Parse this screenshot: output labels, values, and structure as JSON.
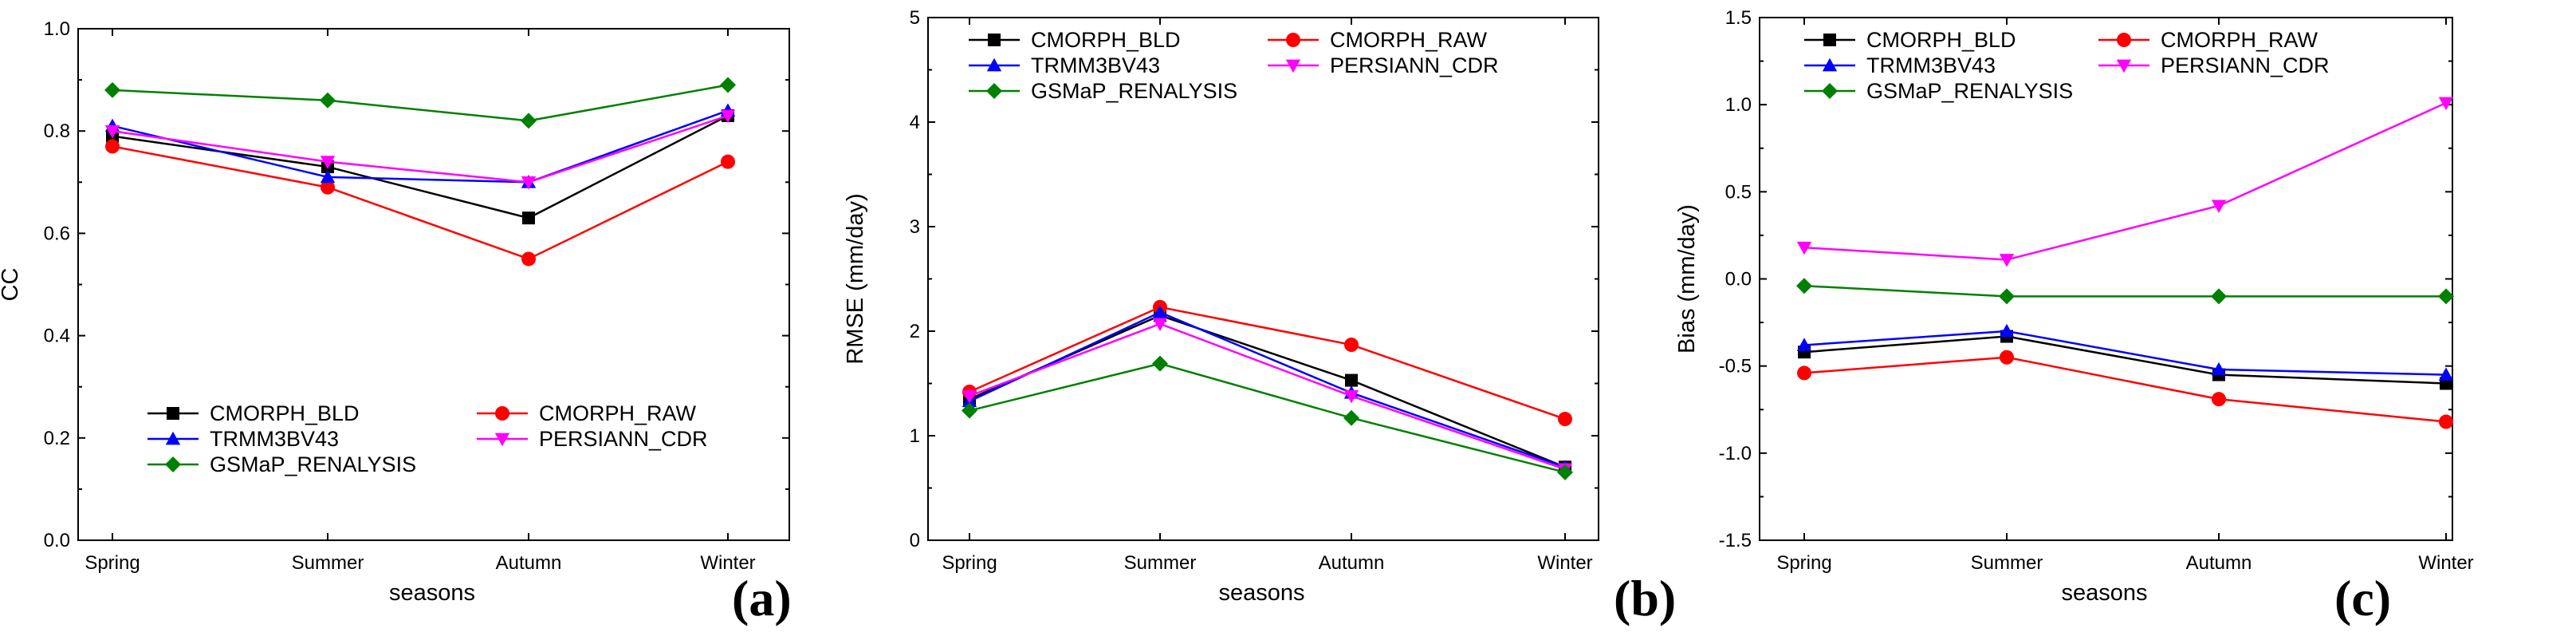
{
  "chart_data": [
    {
      "type": "line",
      "panel_label": "(a)",
      "xlabel": "seasons",
      "ylabel": "CC",
      "ylim": [
        0.0,
        1.0
      ],
      "yticks": [
        "0.0",
        "0.2",
        "0.4",
        "0.6",
        "0.8",
        "1.0"
      ],
      "categories": [
        "Spring",
        "Summer",
        "Autumn",
        "Winter"
      ],
      "legend_position": "lower-left",
      "series": [
        {
          "name": "CMORPH_BLD",
          "color": "#000000",
          "marker": "square",
          "values": [
            0.79,
            0.73,
            0.63,
            0.83
          ]
        },
        {
          "name": "CMORPH_RAW",
          "color": "#ff0000",
          "marker": "circle",
          "values": [
            0.77,
            0.69,
            0.55,
            0.74
          ]
        },
        {
          "name": "TRMM3BV43",
          "color": "#0000ff",
          "marker": "triangle-up",
          "values": [
            0.81,
            0.71,
            0.7,
            0.84
          ]
        },
        {
          "name": "PERSIANN_CDR",
          "color": "#ff00ff",
          "marker": "triangle-down",
          "values": [
            0.8,
            0.74,
            0.7,
            0.83
          ]
        },
        {
          "name": "GSMaP_RENALYSIS",
          "color": "#008000",
          "marker": "diamond",
          "values": [
            0.88,
            0.86,
            0.82,
            0.89
          ]
        }
      ]
    },
    {
      "type": "line",
      "panel_label": "(b)",
      "xlabel": "seasons",
      "ylabel": "RMSE (mm/day)",
      "ylim": [
        0,
        5
      ],
      "yticks": [
        "0",
        "1",
        "2",
        "3",
        "4",
        "5"
      ],
      "categories": [
        "Spring",
        "Summer",
        "Autumn",
        "Winter"
      ],
      "legend_position": "top-left",
      "series": [
        {
          "name": "CMORPH_BLD",
          "color": "#000000",
          "marker": "square",
          "values": [
            1.35,
            2.15,
            1.53,
            0.7
          ]
        },
        {
          "name": "CMORPH_RAW",
          "color": "#ff0000",
          "marker": "circle",
          "values": [
            1.42,
            2.23,
            1.87,
            1.16
          ]
        },
        {
          "name": "TRMM3BV43",
          "color": "#0000ff",
          "marker": "triangle-up",
          "values": [
            1.33,
            2.18,
            1.41,
            0.7
          ]
        },
        {
          "name": "PERSIANN_CDR",
          "color": "#ff00ff",
          "marker": "triangle-down",
          "values": [
            1.38,
            2.07,
            1.38,
            0.68
          ]
        },
        {
          "name": "GSMaP_RENALYSIS",
          "color": "#008000",
          "marker": "diamond",
          "values": [
            1.24,
            1.69,
            1.17,
            0.65
          ]
        }
      ]
    },
    {
      "type": "line",
      "panel_label": "(c)",
      "xlabel": "seasons",
      "ylabel": "Bias (mm/day)",
      "ylim": [
        -1.5,
        1.5
      ],
      "yticks": [
        "-1.5",
        "-1.0",
        "-0.5",
        "0.0",
        "0.5",
        "1.0",
        "1.5"
      ],
      "categories": [
        "Spring",
        "Summer",
        "Autumn",
        "Winter"
      ],
      "legend_position": "top-left",
      "series": [
        {
          "name": "CMORPH_BLD",
          "color": "#000000",
          "marker": "square",
          "values": [
            -0.42,
            -0.33,
            -0.55,
            -0.6
          ]
        },
        {
          "name": "CMORPH_RAW",
          "color": "#ff0000",
          "marker": "circle",
          "values": [
            -0.54,
            -0.45,
            -0.69,
            -0.82
          ]
        },
        {
          "name": "TRMM3BV43",
          "color": "#0000ff",
          "marker": "triangle-up",
          "values": [
            -0.38,
            -0.3,
            -0.52,
            -0.55
          ]
        },
        {
          "name": "PERSIANN_CDR",
          "color": "#ff00ff",
          "marker": "triangle-down",
          "values": [
            0.18,
            0.11,
            0.42,
            1.01
          ]
        },
        {
          "name": "GSMaP_RENALYSIS",
          "color": "#008000",
          "marker": "diamond",
          "values": [
            -0.04,
            -0.1,
            -0.1,
            -0.1
          ]
        }
      ]
    }
  ]
}
